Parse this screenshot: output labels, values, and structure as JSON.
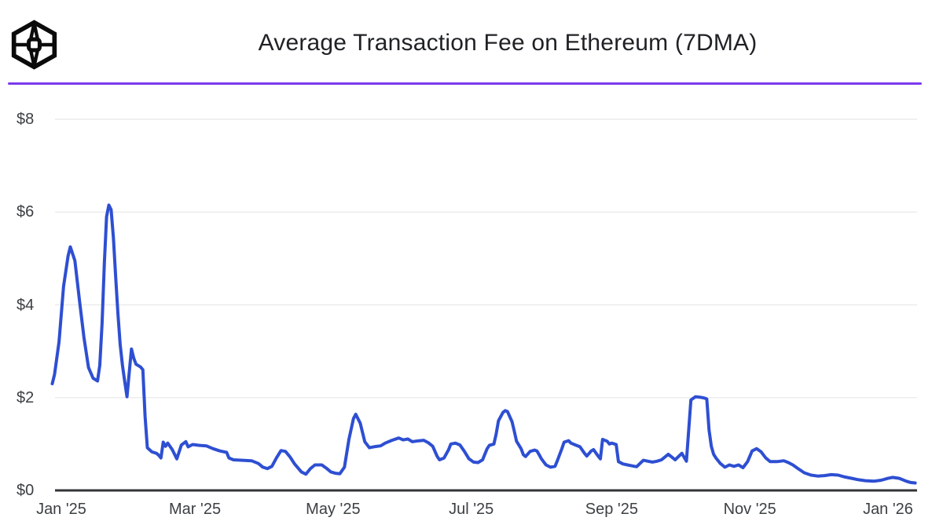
{
  "header": {
    "title": "Average Transaction Fee on Ethereum (7DMA)",
    "logo_name": "the-block-cube-logo",
    "divider_color": "#7C3AED"
  },
  "chart_data": {
    "type": "line",
    "title": "Average Transaction Fee on Ethereum (7DMA)",
    "series_name": "Average transaction fee on Ethereum, 7-day moving average",
    "unit": "USD",
    "line_color": "#2E4FD2",
    "grid_color": "#ECECEC",
    "axis_color": "#323438",
    "label_color": "#3C4043",
    "grid": true,
    "legend": "none",
    "y_axis": {
      "range": [
        0,
        8.75
      ],
      "ticks": [
        {
          "value": 0,
          "label": "$0"
        },
        {
          "value": 2,
          "label": "$2"
        },
        {
          "value": 4,
          "label": "$4"
        },
        {
          "value": 6,
          "label": "$6"
        },
        {
          "value": 8,
          "label": "$8"
        }
      ]
    },
    "x_axis": {
      "ticks": [
        {
          "date": "2025-01-01",
          "label": "Jan '25"
        },
        {
          "date": "2025-03-01",
          "label": "Mar '25"
        },
        {
          "date": "2025-05-01",
          "label": "May '25"
        },
        {
          "date": "2025-07-01",
          "label": "Jul '25"
        },
        {
          "date": "2025-09-01",
          "label": "Sep '25"
        },
        {
          "date": "2025-11-01",
          "label": "Nov '25"
        },
        {
          "date": "2026-01-01",
          "label": "Jan '26"
        }
      ]
    },
    "points": [
      [
        "2024-12-28",
        2.3
      ],
      [
        "2024-12-29",
        2.5
      ],
      [
        "2024-12-31",
        3.2
      ],
      [
        "2025-01-02",
        4.4
      ],
      [
        "2025-01-04",
        5.05
      ],
      [
        "2025-01-05",
        5.25
      ],
      [
        "2025-01-07",
        4.95
      ],
      [
        "2025-01-09",
        4.1
      ],
      [
        "2025-01-11",
        3.3
      ],
      [
        "2025-01-13",
        2.65
      ],
      [
        "2025-01-15",
        2.42
      ],
      [
        "2025-01-17",
        2.36
      ],
      [
        "2025-01-18",
        2.7
      ],
      [
        "2025-01-19",
        3.6
      ],
      [
        "2025-01-20",
        4.9
      ],
      [
        "2025-01-21",
        5.9
      ],
      [
        "2025-01-22",
        6.15
      ],
      [
        "2025-01-23",
        6.05
      ],
      [
        "2025-01-24",
        5.45
      ],
      [
        "2025-01-25",
        4.6
      ],
      [
        "2025-01-26",
        3.8
      ],
      [
        "2025-01-27",
        3.15
      ],
      [
        "2025-01-28",
        2.7
      ],
      [
        "2025-01-29",
        2.35
      ],
      [
        "2025-01-30",
        2.02
      ],
      [
        "2025-01-31",
        2.55
      ],
      [
        "2025-02-01",
        3.05
      ],
      [
        "2025-02-02",
        2.85
      ],
      [
        "2025-02-03",
        2.72
      ],
      [
        "2025-02-05",
        2.66
      ],
      [
        "2025-02-06",
        2.6
      ],
      [
        "2025-02-07",
        1.6
      ],
      [
        "2025-02-08",
        0.92
      ],
      [
        "2025-02-10",
        0.83
      ],
      [
        "2025-02-12",
        0.8
      ],
      [
        "2025-02-13",
        0.76
      ],
      [
        "2025-02-14",
        0.7
      ],
      [
        "2025-02-15",
        1.04
      ],
      [
        "2025-02-16",
        0.95
      ],
      [
        "2025-02-17",
        1.02
      ],
      [
        "2025-02-19",
        0.88
      ],
      [
        "2025-02-21",
        0.68
      ],
      [
        "2025-02-23",
        0.98
      ],
      [
        "2025-02-25",
        1.05
      ],
      [
        "2025-02-26",
        0.94
      ],
      [
        "2025-02-28",
        0.99
      ],
      [
        "2025-03-03",
        0.97
      ],
      [
        "2025-03-06",
        0.96
      ],
      [
        "2025-03-09",
        0.9
      ],
      [
        "2025-03-12",
        0.85
      ],
      [
        "2025-03-15",
        0.82
      ],
      [
        "2025-03-16",
        0.7
      ],
      [
        "2025-03-18",
        0.66
      ],
      [
        "2025-03-22",
        0.65
      ],
      [
        "2025-03-26",
        0.64
      ],
      [
        "2025-03-29",
        0.58
      ],
      [
        "2025-03-31",
        0.5
      ],
      [
        "2025-04-02",
        0.47
      ],
      [
        "2025-04-04",
        0.52
      ],
      [
        "2025-04-06",
        0.7
      ],
      [
        "2025-04-08",
        0.86
      ],
      [
        "2025-04-10",
        0.84
      ],
      [
        "2025-04-12",
        0.72
      ],
      [
        "2025-04-14",
        0.57
      ],
      [
        "2025-04-17",
        0.4
      ],
      [
        "2025-04-19",
        0.35
      ],
      [
        "2025-04-21",
        0.47
      ],
      [
        "2025-04-23",
        0.55
      ],
      [
        "2025-04-26",
        0.55
      ],
      [
        "2025-04-28",
        0.48
      ],
      [
        "2025-04-30",
        0.4
      ],
      [
        "2025-05-02",
        0.37
      ],
      [
        "2025-05-04",
        0.36
      ],
      [
        "2025-05-06",
        0.5
      ],
      [
        "2025-05-08",
        1.1
      ],
      [
        "2025-05-10",
        1.55
      ],
      [
        "2025-05-11",
        1.64
      ],
      [
        "2025-05-13",
        1.45
      ],
      [
        "2025-05-15",
        1.05
      ],
      [
        "2025-05-17",
        0.92
      ],
      [
        "2025-05-19",
        0.94
      ],
      [
        "2025-05-22",
        0.96
      ],
      [
        "2025-05-24",
        1.02
      ],
      [
        "2025-05-27",
        1.08
      ],
      [
        "2025-05-30",
        1.13
      ],
      [
        "2025-06-01",
        1.09
      ],
      [
        "2025-06-03",
        1.11
      ],
      [
        "2025-06-05",
        1.05
      ],
      [
        "2025-06-08",
        1.07
      ],
      [
        "2025-06-10",
        1.08
      ],
      [
        "2025-06-12",
        1.03
      ],
      [
        "2025-06-14",
        0.95
      ],
      [
        "2025-06-16",
        0.73
      ],
      [
        "2025-06-17",
        0.66
      ],
      [
        "2025-06-19",
        0.7
      ],
      [
        "2025-06-21",
        0.88
      ],
      [
        "2025-06-22",
        1.0
      ],
      [
        "2025-06-24",
        1.02
      ],
      [
        "2025-06-26",
        0.98
      ],
      [
        "2025-06-28",
        0.84
      ],
      [
        "2025-06-30",
        0.68
      ],
      [
        "2025-07-02",
        0.61
      ],
      [
        "2025-07-04",
        0.6
      ],
      [
        "2025-07-06",
        0.66
      ],
      [
        "2025-07-08",
        0.9
      ],
      [
        "2025-07-09",
        0.97
      ],
      [
        "2025-07-11",
        1.0
      ],
      [
        "2025-07-12",
        1.22
      ],
      [
        "2025-07-13",
        1.5
      ],
      [
        "2025-07-15",
        1.68
      ],
      [
        "2025-07-16",
        1.72
      ],
      [
        "2025-07-17",
        1.7
      ],
      [
        "2025-07-19",
        1.48
      ],
      [
        "2025-07-20",
        1.28
      ],
      [
        "2025-07-21",
        1.06
      ],
      [
        "2025-07-23",
        0.9
      ],
      [
        "2025-07-24",
        0.77
      ],
      [
        "2025-07-25",
        0.73
      ],
      [
        "2025-07-27",
        0.84
      ],
      [
        "2025-07-29",
        0.87
      ],
      [
        "2025-07-30",
        0.85
      ],
      [
        "2025-07-31",
        0.77
      ],
      [
        "2025-08-01",
        0.68
      ],
      [
        "2025-08-03",
        0.55
      ],
      [
        "2025-08-05",
        0.5
      ],
      [
        "2025-08-07",
        0.52
      ],
      [
        "2025-08-08",
        0.64
      ],
      [
        "2025-08-10",
        0.9
      ],
      [
        "2025-08-11",
        1.04
      ],
      [
        "2025-08-13",
        1.07
      ],
      [
        "2025-08-14",
        1.02
      ],
      [
        "2025-08-16",
        0.98
      ],
      [
        "2025-08-18",
        0.94
      ],
      [
        "2025-08-20",
        0.8
      ],
      [
        "2025-08-21",
        0.74
      ],
      [
        "2025-08-23",
        0.85
      ],
      [
        "2025-08-24",
        0.88
      ],
      [
        "2025-08-26",
        0.74
      ],
      [
        "2025-08-27",
        0.68
      ],
      [
        "2025-08-28",
        1.1
      ],
      [
        "2025-08-30",
        1.06
      ],
      [
        "2025-08-31",
        1.0
      ],
      [
        "2025-09-01",
        1.02
      ],
      [
        "2025-09-03",
        0.99
      ],
      [
        "2025-09-04",
        0.62
      ],
      [
        "2025-09-06",
        0.57
      ],
      [
        "2025-09-08",
        0.55
      ],
      [
        "2025-09-10",
        0.53
      ],
      [
        "2025-09-12",
        0.51
      ],
      [
        "2025-09-15",
        0.65
      ],
      [
        "2025-09-17",
        0.63
      ],
      [
        "2025-09-19",
        0.61
      ],
      [
        "2025-09-21",
        0.63
      ],
      [
        "2025-09-23",
        0.66
      ],
      [
        "2025-09-26",
        0.78
      ],
      [
        "2025-09-28",
        0.7
      ],
      [
        "2025-09-29",
        0.66
      ],
      [
        "2025-10-02",
        0.8
      ],
      [
        "2025-10-04",
        0.63
      ],
      [
        "2025-10-06",
        1.95
      ],
      [
        "2025-10-08",
        2.02
      ],
      [
        "2025-10-10",
        2.01
      ],
      [
        "2025-10-12",
        1.99
      ],
      [
        "2025-10-13",
        1.97
      ],
      [
        "2025-10-14",
        1.3
      ],
      [
        "2025-10-15",
        0.95
      ],
      [
        "2025-10-16",
        0.78
      ],
      [
        "2025-10-17",
        0.7
      ],
      [
        "2025-10-19",
        0.58
      ],
      [
        "2025-10-21",
        0.5
      ],
      [
        "2025-10-23",
        0.55
      ],
      [
        "2025-10-25",
        0.52
      ],
      [
        "2025-10-27",
        0.55
      ],
      [
        "2025-10-29",
        0.49
      ],
      [
        "2025-10-31",
        0.62
      ],
      [
        "2025-11-02",
        0.85
      ],
      [
        "2025-11-04",
        0.9
      ],
      [
        "2025-11-06",
        0.83
      ],
      [
        "2025-11-08",
        0.7
      ],
      [
        "2025-11-10",
        0.62
      ],
      [
        "2025-11-13",
        0.62
      ],
      [
        "2025-11-16",
        0.64
      ],
      [
        "2025-11-18",
        0.6
      ],
      [
        "2025-11-20",
        0.55
      ],
      [
        "2025-11-22",
        0.48
      ],
      [
        "2025-11-25",
        0.38
      ],
      [
        "2025-11-28",
        0.33
      ],
      [
        "2025-12-01",
        0.31
      ],
      [
        "2025-12-04",
        0.32
      ],
      [
        "2025-12-07",
        0.34
      ],
      [
        "2025-12-10",
        0.33
      ],
      [
        "2025-12-13",
        0.29
      ],
      [
        "2025-12-16",
        0.26
      ],
      [
        "2025-12-19",
        0.23
      ],
      [
        "2025-12-22",
        0.21
      ],
      [
        "2025-12-26",
        0.2
      ],
      [
        "2025-12-29",
        0.22
      ],
      [
        "2026-01-01",
        0.26
      ],
      [
        "2026-01-03",
        0.28
      ],
      [
        "2026-01-06",
        0.26
      ],
      [
        "2026-01-09",
        0.2
      ],
      [
        "2026-01-11",
        0.17
      ],
      [
        "2026-01-13",
        0.16
      ]
    ]
  }
}
